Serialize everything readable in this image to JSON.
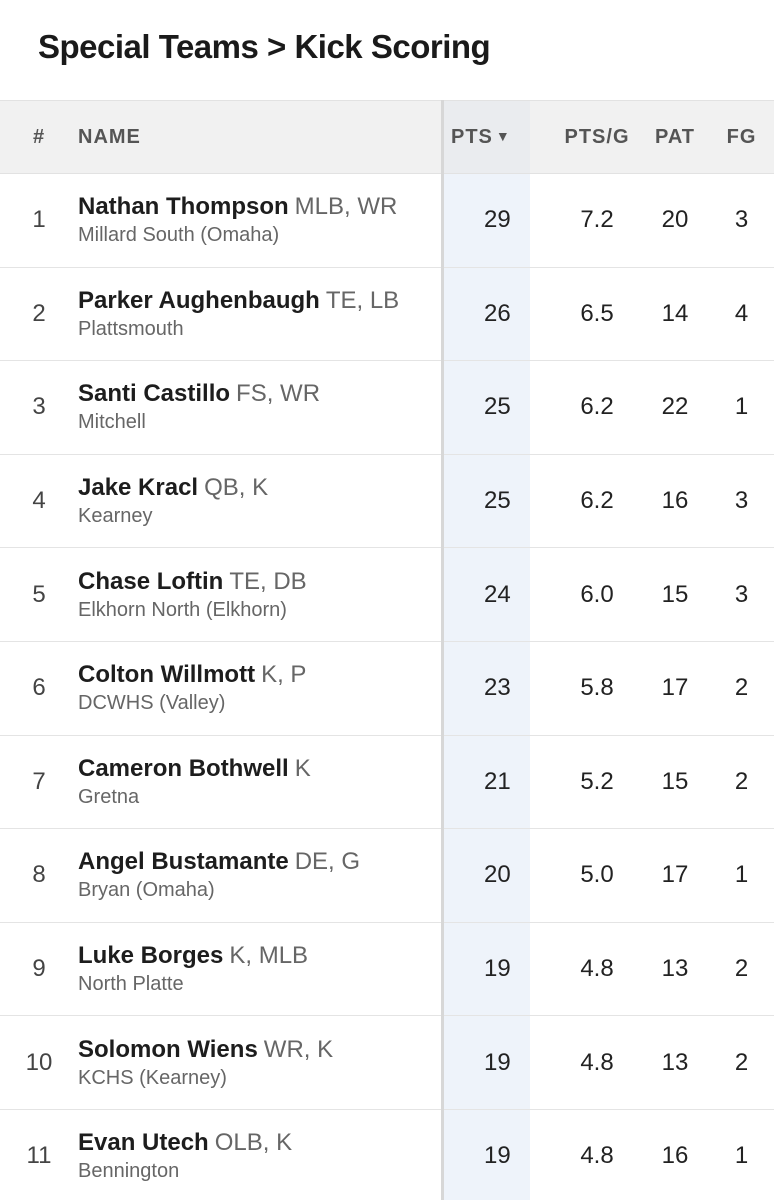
{
  "page": {
    "title": "Special Teams > Kick Scoring"
  },
  "table": {
    "headers": {
      "rank": "#",
      "name": "NAME",
      "pts": "PTS",
      "pts_sort_indicator": "▼",
      "ptsg": "PTS/G",
      "pat": "PAT",
      "fg": "FG"
    },
    "rows": [
      {
        "rank": "1",
        "name": "Nathan Thompson",
        "pos": "MLB, WR",
        "school": "Millard South (Omaha)",
        "pts": "29",
        "ptsg": "7.2",
        "pat": "20",
        "fg": "3"
      },
      {
        "rank": "2",
        "name": "Parker Aughenbaugh",
        "pos": "TE, LB",
        "school": "Plattsmouth",
        "pts": "26",
        "ptsg": "6.5",
        "pat": "14",
        "fg": "4"
      },
      {
        "rank": "3",
        "name": "Santi Castillo",
        "pos": "FS, WR",
        "school": "Mitchell",
        "pts": "25",
        "ptsg": "6.2",
        "pat": "22",
        "fg": "1"
      },
      {
        "rank": "4",
        "name": "Jake Kracl",
        "pos": "QB, K",
        "school": "Kearney",
        "pts": "25",
        "ptsg": "6.2",
        "pat": "16",
        "fg": "3"
      },
      {
        "rank": "5",
        "name": "Chase Loftin",
        "pos": "TE, DB",
        "school": "Elkhorn North (Elkhorn)",
        "pts": "24",
        "ptsg": "6.0",
        "pat": "15",
        "fg": "3"
      },
      {
        "rank": "6",
        "name": "Colton Willmott",
        "pos": "K, P",
        "school": "DCWHS (Valley)",
        "pts": "23",
        "ptsg": "5.8",
        "pat": "17",
        "fg": "2"
      },
      {
        "rank": "7",
        "name": "Cameron Bothwell",
        "pos": "K",
        "school": "Gretna",
        "pts": "21",
        "ptsg": "5.2",
        "pat": "15",
        "fg": "2"
      },
      {
        "rank": "8",
        "name": "Angel Bustamante",
        "pos": "DE, G",
        "school": "Bryan (Omaha)",
        "pts": "20",
        "ptsg": "5.0",
        "pat": "17",
        "fg": "1"
      },
      {
        "rank": "9",
        "name": "Luke Borges",
        "pos": "K, MLB",
        "school": "North Platte",
        "pts": "19",
        "ptsg": "4.8",
        "pat": "13",
        "fg": "2"
      },
      {
        "rank": "10",
        "name": "Solomon Wiens",
        "pos": "WR, K",
        "school": "KCHS (Kearney)",
        "pts": "19",
        "ptsg": "4.8",
        "pat": "13",
        "fg": "2"
      },
      {
        "rank": "11",
        "name": "Evan Utech",
        "pos": "OLB, K",
        "school": "Bennington",
        "pts": "19",
        "ptsg": "4.8",
        "pat": "16",
        "fg": "1"
      }
    ]
  },
  "colors": {
    "sorted_column_bg": "#eef3fa",
    "header_bg": "#f0f0f0",
    "row_divider": "#e4e4e4"
  }
}
